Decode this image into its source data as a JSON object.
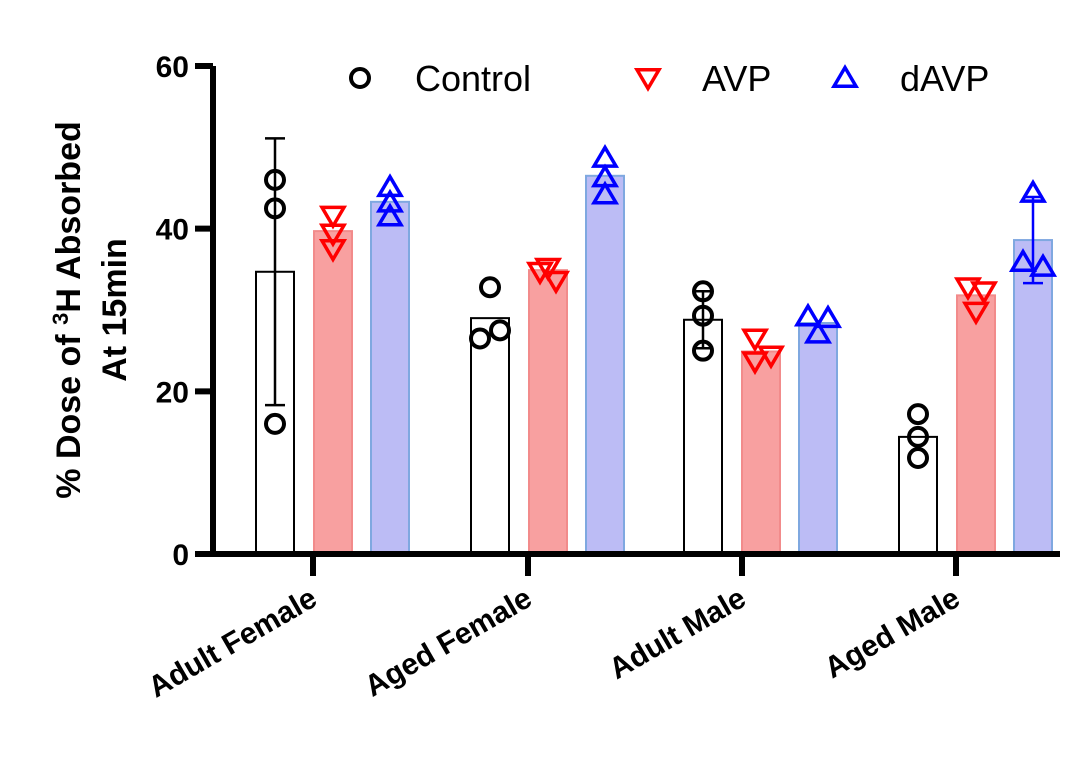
{
  "chart_data": {
    "type": "bar",
    "ylabel": {
      "line1_pre": "% Dose of ",
      "line1_sup": "3",
      "line1_post": "H Absorbed",
      "line2": "At 15min"
    },
    "ylim": [
      0,
      60
    ],
    "yticks": [
      0,
      20,
      40,
      60
    ],
    "categories": [
      "Adult Female",
      "Aged Female",
      "Adult Male",
      "Aged Male"
    ],
    "legend_position": "top",
    "series": [
      {
        "name": "Control",
        "marker": "circle",
        "color": "#000000",
        "bar_fill": "#ffffff",
        "bar_stroke": "#000000",
        "values": [
          34.7,
          29.0,
          28.8,
          14.4
        ],
        "error": [
          [
            18.3,
            51.1
          ],
          [
            null,
            null
          ],
          [
            25.3,
            32.3
          ],
          [
            null,
            null
          ]
        ],
        "points": [
          [
            46,
            42.5,
            16
          ],
          [
            32.8,
            26.5,
            27.5
          ],
          [
            32.3,
            29.3,
            25
          ],
          [
            17.2,
            14.4,
            11.8
          ]
        ]
      },
      {
        "name": "AVP",
        "marker": "triangle-down",
        "color": "#ff0000",
        "bar_fill": "#f8a0a0",
        "bar_stroke": "#f28b8b",
        "values": [
          39.7,
          34.9,
          24.9,
          31.8
        ],
        "error": [
          [
            null,
            null
          ],
          [
            null,
            null
          ],
          [
            null,
            null
          ],
          [
            null,
            null
          ]
        ],
        "points": [
          [
            41.6,
            39.4,
            37.5
          ],
          [
            35.2,
            34.7,
            33.6
          ],
          [
            26.5,
            24.4,
            23.7
          ],
          [
            32.8,
            32.3,
            29.8
          ]
        ]
      },
      {
        "name": "dAVP",
        "marker": "triangle-up",
        "color": "#0000ff",
        "bar_fill": "#bcbcf5",
        "bar_stroke": "#7fa8e0",
        "values": [
          43.3,
          46.5,
          28.4,
          38.6
        ],
        "error": [
          [
            null,
            null
          ],
          [
            null,
            null
          ],
          [
            null,
            null
          ],
          [
            33.3,
            43.9
          ]
        ],
        "points": [
          [
            45.1,
            43.2,
            41.5
          ],
          [
            48.7,
            46.3,
            44.2
          ],
          [
            29.2,
            29,
            27.1
          ],
          [
            44.4,
            35.3,
            35.9
          ]
        ]
      }
    ]
  }
}
